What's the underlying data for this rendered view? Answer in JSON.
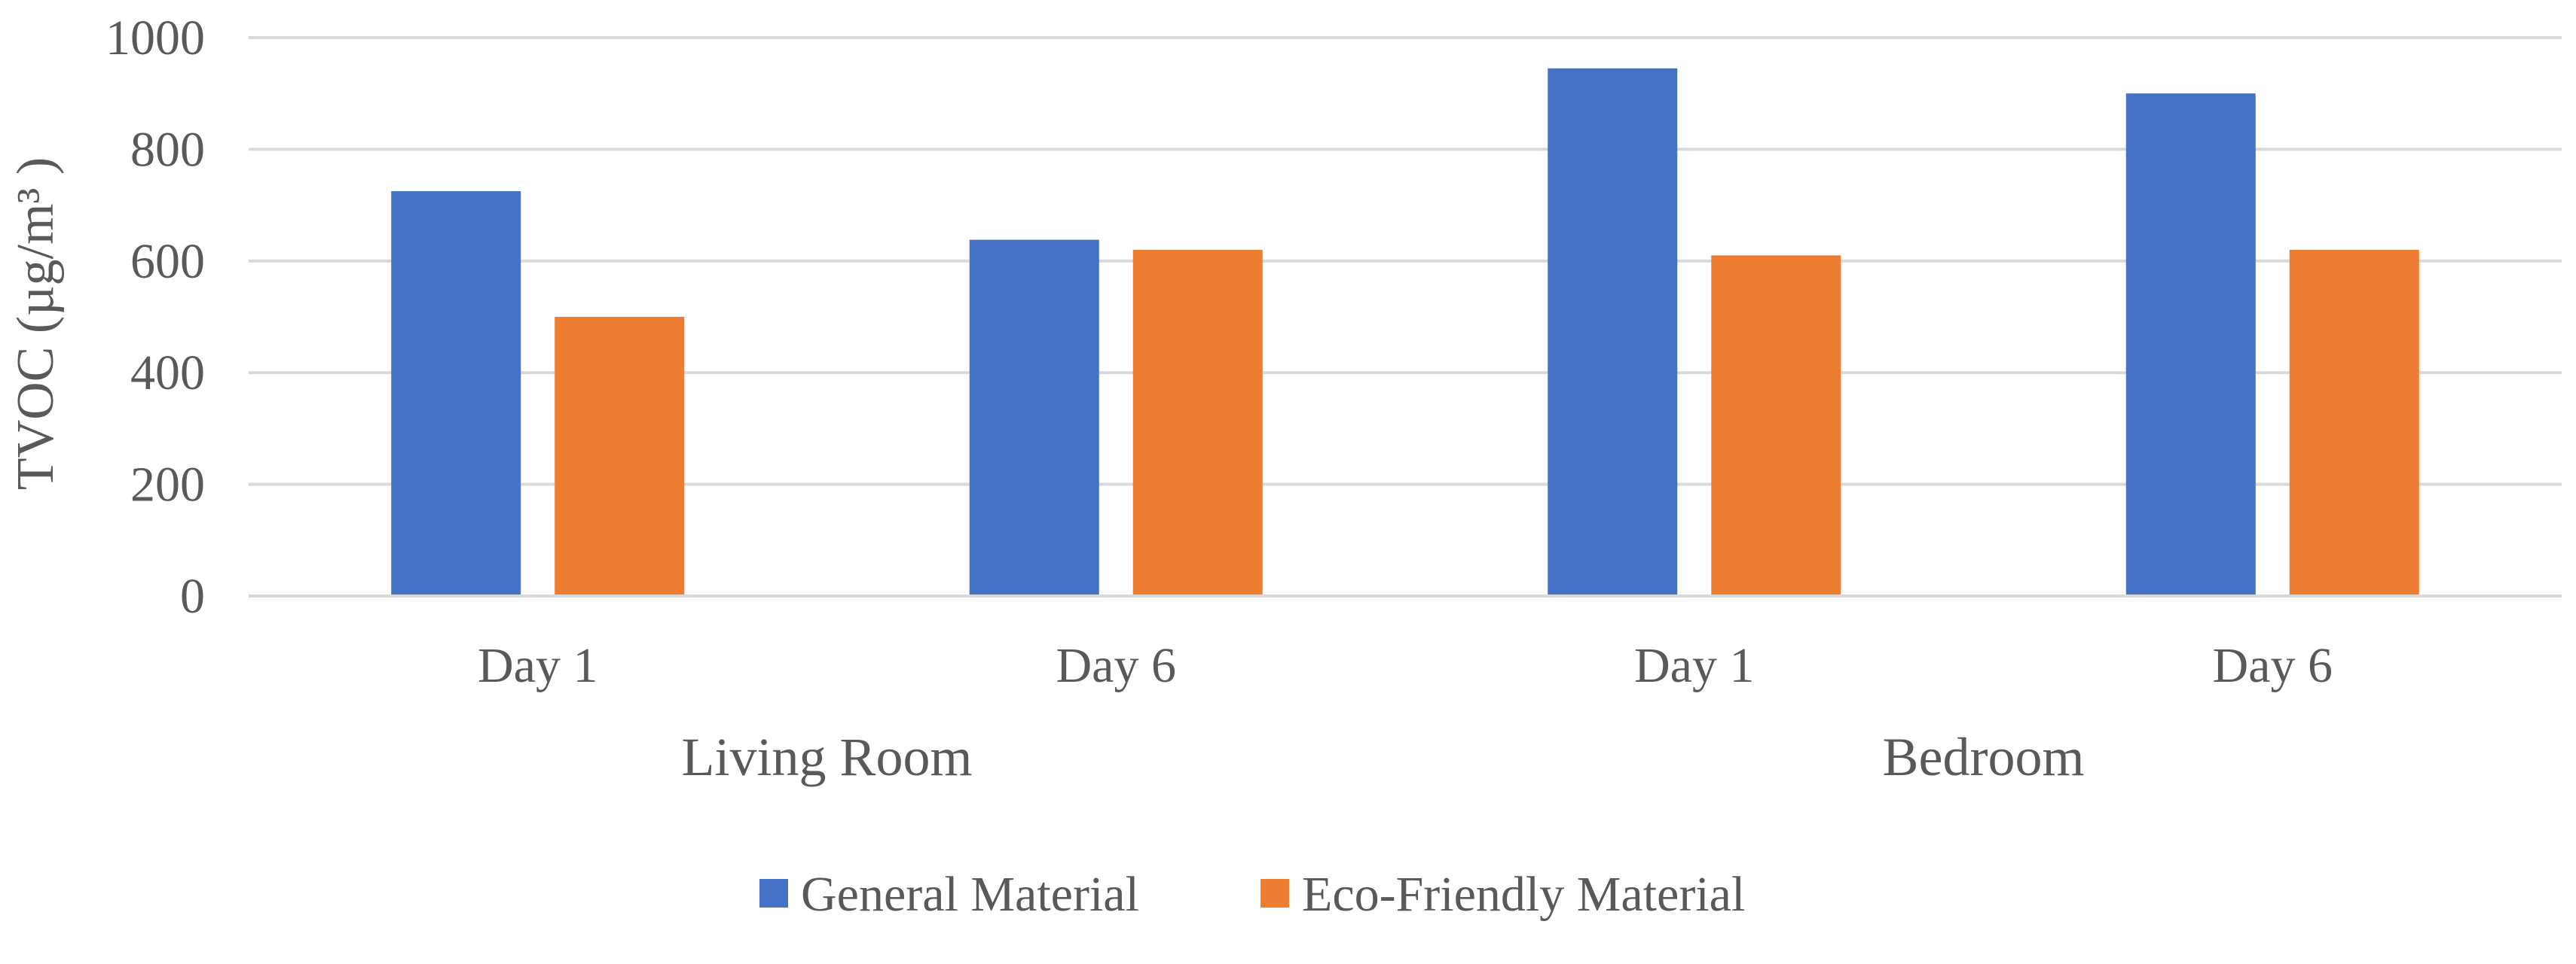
{
  "chart_data": {
    "type": "bar",
    "title": "",
    "ylabel": "TVOC (µg/m³ )",
    "xlabel": "",
    "ylim": [
      0,
      1000
    ],
    "yticks": [
      0,
      200,
      400,
      600,
      800,
      1000
    ],
    "grid": true,
    "legend_position": "bottom",
    "categories": [
      "Day 1",
      "Day 6",
      "Day 1",
      "Day 6"
    ],
    "groups": [
      {
        "label": "Living Room",
        "categories": [
          "Day 1",
          "Day 6"
        ]
      },
      {
        "label": "Bedroom",
        "categories": [
          "Day 1",
          "Day 6"
        ]
      }
    ],
    "series": [
      {
        "name": "General Material",
        "color": "#4472C4",
        "values": [
          725,
          638,
          945,
          900
        ]
      },
      {
        "name": "Eco-Friendly Material",
        "color": "#ED7D31",
        "values": [
          500,
          620,
          610,
          620
        ]
      }
    ]
  }
}
